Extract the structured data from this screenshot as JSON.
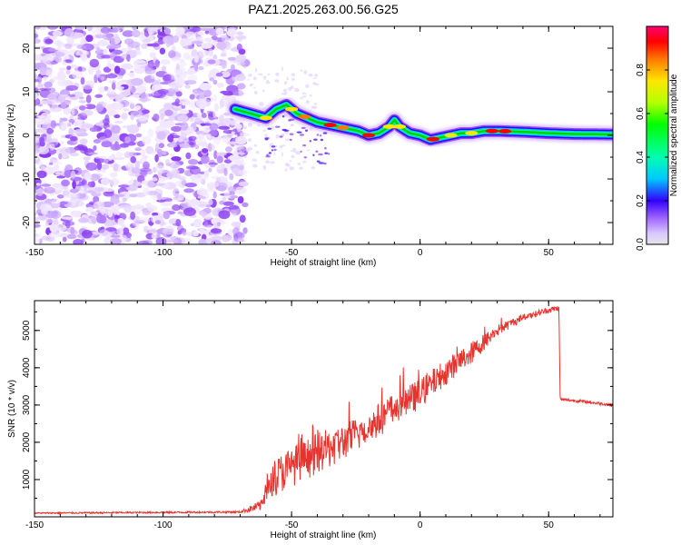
{
  "title": "PAZ1.2025.263.00.56.G25",
  "chart_data": [
    {
      "type": "heatmap",
      "xlabel": "Height of straight line (km)",
      "ylabel": "Frequency (Hz)",
      "xlim": [
        -150,
        75
      ],
      "ylim": [
        -25,
        25
      ],
      "xticks": [
        -150,
        -100,
        -50,
        0,
        50
      ],
      "xtick_labels": [
        "-150",
        "-100",
        "-50",
        "0",
        "50"
      ],
      "yticks": [
        -20,
        -10,
        0,
        10,
        20
      ],
      "ytick_labels": [
        "-20",
        "-10",
        "0",
        "10",
        "20"
      ],
      "noise_region_x": [
        -150,
        -68
      ],
      "ridge": {
        "x": [
          -72,
          -66,
          -60,
          -56,
          -52,
          -48,
          -44,
          -40,
          -36,
          -32,
          -28,
          -24,
          -20,
          -16,
          -12,
          -10,
          -8,
          -4,
          0,
          4,
          8,
          12,
          16,
          20,
          25,
          30,
          40,
          50,
          60,
          75
        ],
        "freq": [
          6,
          5,
          4,
          6,
          7,
          5,
          4,
          3,
          2.5,
          2,
          1.5,
          1,
          0,
          0.5,
          2,
          3.5,
          2,
          0.5,
          0,
          -1,
          -0.5,
          0,
          0.5,
          0.5,
          1,
          1,
          0.8,
          0.5,
          0.3,
          0.2
        ]
      },
      "colorbar": {
        "label": "Normalized spectral amplitude",
        "range": [
          0,
          1
        ],
        "ticks": [
          0.0,
          0.2,
          0.4,
          0.6,
          0.8
        ],
        "tick_labels": [
          "0.0",
          "0.2",
          "0.4",
          "0.6",
          "0.8"
        ]
      }
    },
    {
      "type": "line",
      "xlabel": "Height of straight line (km)",
      "ylabel": "SNR (10 * v/v)",
      "xlim": [
        -150,
        75
      ],
      "ylim": [
        0,
        5800
      ],
      "xticks": [
        -150,
        -100,
        -50,
        0,
        50
      ],
      "xtick_labels": [
        "-150",
        "-100",
        "-50",
        "0",
        "50"
      ],
      "yticks": [
        1000,
        2000,
        3000,
        4000,
        5000
      ],
      "ytick_labels": [
        "1000",
        "2000",
        "3000",
        "4000",
        "5000"
      ],
      "series": [
        {
          "name": "SNR",
          "color": "#e8322d",
          "x": [
            -150,
            -70,
            -62,
            -58,
            -50,
            -40,
            -30,
            -20,
            -10,
            0,
            10,
            20,
            30,
            40,
            50,
            54,
            54.5,
            60,
            75
          ],
          "mean": [
            100,
            130,
            300,
            1000,
            1350,
            1700,
            2000,
            2400,
            2900,
            3300,
            3900,
            4400,
            5000,
            5350,
            5550,
            5600,
            3150,
            3120,
            3000
          ],
          "noise": [
            20,
            25,
            150,
            500,
            550,
            550,
            500,
            450,
            450,
            400,
            350,
            300,
            150,
            100,
            80,
            80,
            40,
            40,
            40
          ]
        }
      ]
    }
  ]
}
